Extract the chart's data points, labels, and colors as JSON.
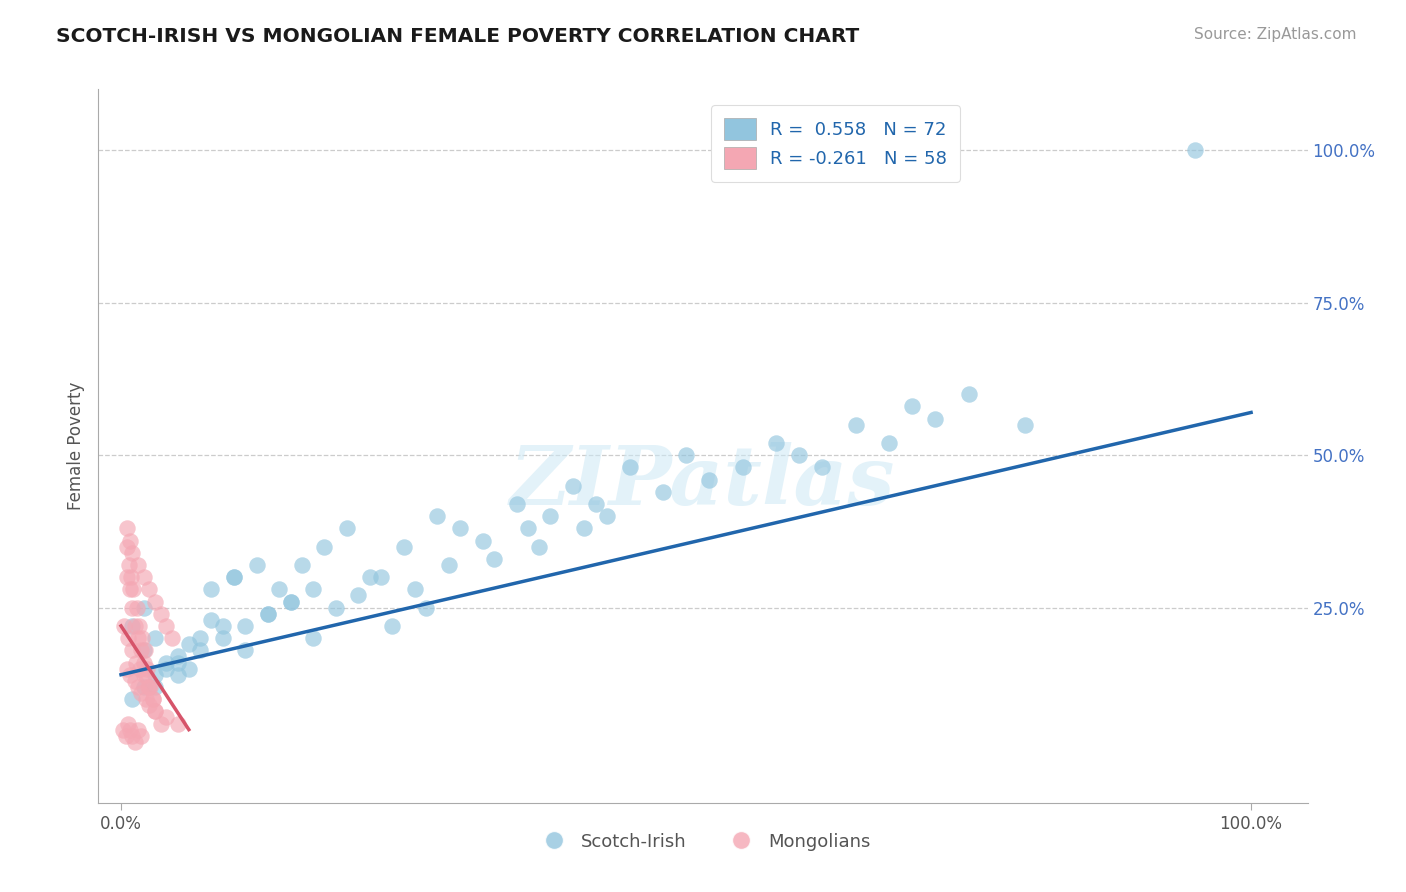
{
  "title": "SCOTCH-IRISH VS MONGOLIAN FEMALE POVERTY CORRELATION CHART",
  "source_text": "Source: ZipAtlas.com",
  "ylabel": "Female Poverty",
  "blue_color": "#92c5de",
  "pink_color": "#f4a7b3",
  "blue_line_color": "#2166ac",
  "pink_line_color": "#d6546a",
  "legend_blue_label": "R =  0.558   N = 72",
  "legend_pink_label": "R = -0.261   N = 58",
  "watermark_text": "ZIPatlas",
  "background_color": "#ffffff",
  "grid_color": "#cccccc",
  "bottom_labels": [
    "Scotch-Irish",
    "Mongolians"
  ],
  "scotch_x": [
    0.02,
    0.03,
    0.01,
    0.04,
    0.05,
    0.06,
    0.02,
    0.03,
    0.04,
    0.05,
    0.08,
    0.1,
    0.07,
    0.09,
    0.11,
    0.13,
    0.15,
    0.12,
    0.06,
    0.08,
    0.1,
    0.14,
    0.16,
    0.18,
    0.2,
    0.22,
    0.24,
    0.19,
    0.17,
    0.21,
    0.25,
    0.28,
    0.3,
    0.23,
    0.26,
    0.29,
    0.32,
    0.35,
    0.27,
    0.33,
    0.38,
    0.4,
    0.36,
    0.42,
    0.45,
    0.37,
    0.43,
    0.48,
    0.5,
    0.41,
    0.01,
    0.02,
    0.03,
    0.05,
    0.07,
    0.09,
    0.11,
    0.13,
    0.15,
    0.17,
    0.55,
    0.6,
    0.52,
    0.58,
    0.65,
    0.7,
    0.62,
    0.68,
    0.72,
    0.75,
    0.8,
    0.95
  ],
  "scotch_y": [
    0.18,
    0.2,
    0.22,
    0.15,
    0.17,
    0.19,
    0.25,
    0.12,
    0.16,
    0.14,
    0.28,
    0.3,
    0.2,
    0.22,
    0.18,
    0.24,
    0.26,
    0.32,
    0.15,
    0.23,
    0.3,
    0.28,
    0.32,
    0.35,
    0.38,
    0.3,
    0.22,
    0.25,
    0.2,
    0.27,
    0.35,
    0.4,
    0.38,
    0.3,
    0.28,
    0.32,
    0.36,
    0.42,
    0.25,
    0.33,
    0.4,
    0.45,
    0.38,
    0.42,
    0.48,
    0.35,
    0.4,
    0.44,
    0.5,
    0.38,
    0.1,
    0.12,
    0.14,
    0.16,
    0.18,
    0.2,
    0.22,
    0.24,
    0.26,
    0.28,
    0.48,
    0.5,
    0.46,
    0.52,
    0.55,
    0.58,
    0.48,
    0.52,
    0.56,
    0.6,
    0.55,
    1.0
  ],
  "mongol_x": [
    0.005,
    0.008,
    0.01,
    0.012,
    0.015,
    0.018,
    0.02,
    0.022,
    0.025,
    0.028,
    0.005,
    0.007,
    0.009,
    0.011,
    0.014,
    0.016,
    0.019,
    0.021,
    0.023,
    0.026,
    0.003,
    0.006,
    0.01,
    0.013,
    0.017,
    0.02,
    0.024,
    0.028,
    0.03,
    0.035,
    0.005,
    0.008,
    0.012,
    0.015,
    0.018,
    0.022,
    0.025,
    0.03,
    0.04,
    0.05,
    0.005,
    0.008,
    0.01,
    0.015,
    0.02,
    0.025,
    0.03,
    0.035,
    0.04,
    0.045,
    0.002,
    0.004,
    0.006,
    0.008,
    0.01,
    0.012,
    0.015,
    0.018
  ],
  "mongol_y": [
    0.3,
    0.28,
    0.25,
    0.22,
    0.2,
    0.18,
    0.16,
    0.14,
    0.12,
    0.1,
    0.35,
    0.32,
    0.3,
    0.28,
    0.25,
    0.22,
    0.2,
    0.18,
    0.15,
    0.12,
    0.22,
    0.2,
    0.18,
    0.16,
    0.15,
    0.14,
    0.12,
    0.1,
    0.08,
    0.06,
    0.15,
    0.14,
    0.13,
    0.12,
    0.11,
    0.1,
    0.09,
    0.08,
    0.07,
    0.06,
    0.38,
    0.36,
    0.34,
    0.32,
    0.3,
    0.28,
    0.26,
    0.24,
    0.22,
    0.2,
    0.05,
    0.04,
    0.06,
    0.05,
    0.04,
    0.03,
    0.05,
    0.04
  ],
  "blue_trendline_x": [
    0.0,
    1.0
  ],
  "blue_trendline_y": [
    0.14,
    0.57
  ],
  "pink_trendline_x": [
    0.0,
    0.06
  ],
  "pink_trendline_y": [
    0.22,
    0.05
  ],
  "xlim": [
    -0.02,
    1.05
  ],
  "ylim": [
    -0.07,
    1.1
  ],
  "ytick_vals": [
    0.25,
    0.5,
    0.75,
    1.0
  ],
  "ytick_labels": [
    "25.0%",
    "50.0%",
    "75.0%",
    "100.0%"
  ],
  "xtick_vals": [
    0.0,
    1.0
  ],
  "xtick_labels": [
    "0.0%",
    "100.0%"
  ]
}
